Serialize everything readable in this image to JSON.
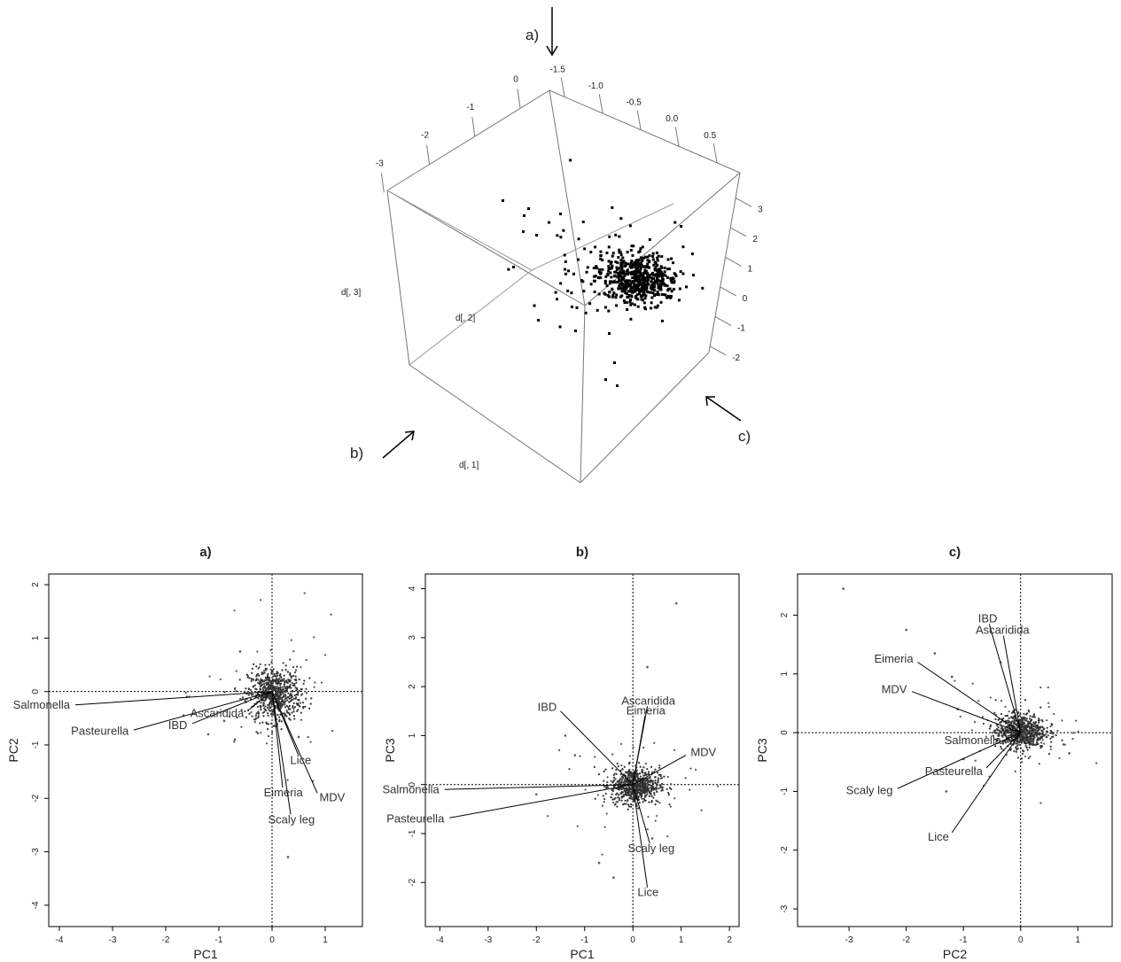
{
  "view3d": {
    "labels": {
      "x": "d[, 1]",
      "y": "d[, 2]",
      "z": "d[, 3]"
    },
    "ticks_top_a": [
      "-1.5",
      "-1.0",
      "-0.5",
      "0.0",
      "0.5"
    ],
    "ticks_top_b": [
      "0",
      "-1",
      "-2",
      "-3"
    ],
    "ticks_right": [
      "3",
      "2",
      "1",
      "0",
      "-1",
      "-2"
    ],
    "view_labels": [
      "a)",
      "b)",
      "c)"
    ]
  },
  "chart_data": [
    {
      "type": "scatter",
      "title": "a)",
      "xlabel": "PC1",
      "ylabel": "PC2",
      "xlim": [
        -4.2,
        1.7
      ],
      "ylim": [
        -4.4,
        2.2
      ],
      "xticks": [
        "-4",
        "-3",
        "-2",
        "-1",
        "0",
        "1"
      ],
      "yticks": [
        "2",
        "1",
        "0",
        "-1",
        "-2",
        "-3",
        "-4"
      ],
      "grid": false,
      "reference_lines": {
        "x": 0,
        "y": 0
      },
      "loadings": [
        {
          "label": "Salmonella",
          "x": -3.7,
          "y": -0.25
        },
        {
          "label": "Pasteurella",
          "x": -2.6,
          "y": -0.72
        },
        {
          "label": "IBD",
          "x": -1.5,
          "y": -0.6
        },
        {
          "label": "Ascaridida",
          "x": -0.45,
          "y": -0.35
        },
        {
          "label": "Eimeria",
          "x": 0.2,
          "y": -1.8
        },
        {
          "label": "Scaly leg",
          "x": 0.35,
          "y": -2.3
        },
        {
          "label": "MDV",
          "x": 0.85,
          "y": -1.9
        },
        {
          "label": "Lice",
          "x": 0.5,
          "y": -1.2
        }
      ],
      "point_cloud": {
        "center": [
          0.05,
          -0.05
        ],
        "spread": [
          0.25,
          0.25
        ]
      },
      "outliers": [
        [
          0.3,
          -3.1
        ],
        [
          -1.2,
          -0.8
        ],
        [
          -1.6,
          -0.1
        ],
        [
          -0.6,
          0.75
        ],
        [
          -0.7,
          -0.9
        ],
        [
          -0.3,
          -0.5
        ],
        [
          -0.9,
          -0.55
        ],
        [
          0.5,
          -0.85
        ]
      ]
    },
    {
      "type": "scatter",
      "title": "b)",
      "xlabel": "PC1",
      "ylabel": "PC3",
      "xlim": [
        -4.3,
        2.2
      ],
      "ylim": [
        -2.9,
        4.3
      ],
      "xticks": [
        "-4",
        "-3",
        "-2",
        "-1",
        "0",
        "1",
        "2"
      ],
      "yticks": [
        "4",
        "3",
        "2",
        "1",
        "0",
        "-1",
        "-2"
      ],
      "grid": false,
      "reference_lines": {
        "x": 0,
        "y": 0
      },
      "loadings": [
        {
          "label": "Salmonella",
          "x": -3.9,
          "y": -0.1
        },
        {
          "label": "Pasteurella",
          "x": -3.8,
          "y": -0.68
        },
        {
          "label": "IBD",
          "x": -1.5,
          "y": 1.5
        },
        {
          "label": "Ascaridida",
          "x": 0.3,
          "y": 1.6
        },
        {
          "label": "Eimeria",
          "x": 0.25,
          "y": 1.4
        },
        {
          "label": "MDV",
          "x": 1.1,
          "y": 0.6
        },
        {
          "label": "Scaly leg",
          "x": 0.35,
          "y": -1.2
        },
        {
          "label": "Lice",
          "x": 0.3,
          "y": -2.1
        }
      ],
      "point_cloud": {
        "center": [
          0.05,
          -0.02
        ],
        "spread": [
          0.25,
          0.18
        ]
      },
      "outliers": [
        [
          0.9,
          3.7
        ],
        [
          0.3,
          2.4
        ],
        [
          -1.4,
          1.0
        ],
        [
          -1.2,
          0.6
        ],
        [
          -0.7,
          -1.6
        ],
        [
          -0.4,
          -1.9
        ],
        [
          0.4,
          -1.1
        ],
        [
          -2.0,
          -0.2
        ]
      ]
    },
    {
      "type": "scatter",
      "title": "c)",
      "xlabel": "PC2",
      "ylabel": "PC3",
      "xlim": [
        -3.9,
        1.6
      ],
      "ylim": [
        -3.3,
        2.7
      ],
      "xticks": [
        "-3",
        "-2",
        "-1",
        "0",
        "1"
      ],
      "yticks": [
        "2",
        "1",
        "0",
        "-1",
        "-2",
        "-3"
      ],
      "grid": false,
      "reference_lines": {
        "x": 0,
        "y": 0
      },
      "loadings": [
        {
          "label": "IBD",
          "x": -0.55,
          "y": 1.85
        },
        {
          "label": "Ascaridida",
          "x": -0.3,
          "y": 1.65
        },
        {
          "label": "Eimeria",
          "x": -1.8,
          "y": 1.2
        },
        {
          "label": "MDV",
          "x": -1.9,
          "y": 0.7
        },
        {
          "label": "Salmonella",
          "x": -0.25,
          "y": -0.1
        },
        {
          "label": "Scaly leg",
          "x": -2.15,
          "y": -0.95
        },
        {
          "label": "Pasteurella",
          "x": -0.6,
          "y": -0.6
        },
        {
          "label": "Lice",
          "x": -1.2,
          "y": -1.7
        }
      ],
      "point_cloud": {
        "center": [
          0.0,
          0.02
        ],
        "spread": [
          0.22,
          0.15
        ]
      },
      "outliers": [
        [
          -3.1,
          2.45
        ],
        [
          -2.0,
          1.75
        ],
        [
          -1.5,
          1.35
        ],
        [
          -1.2,
          0.95
        ],
        [
          -1.3,
          -1.0
        ],
        [
          -1.0,
          -0.45
        ],
        [
          0.85,
          -0.35
        ],
        [
          0.75,
          -0.2
        ],
        [
          -1.1,
          0.4
        ],
        [
          -0.35,
          1.2
        ]
      ]
    }
  ]
}
